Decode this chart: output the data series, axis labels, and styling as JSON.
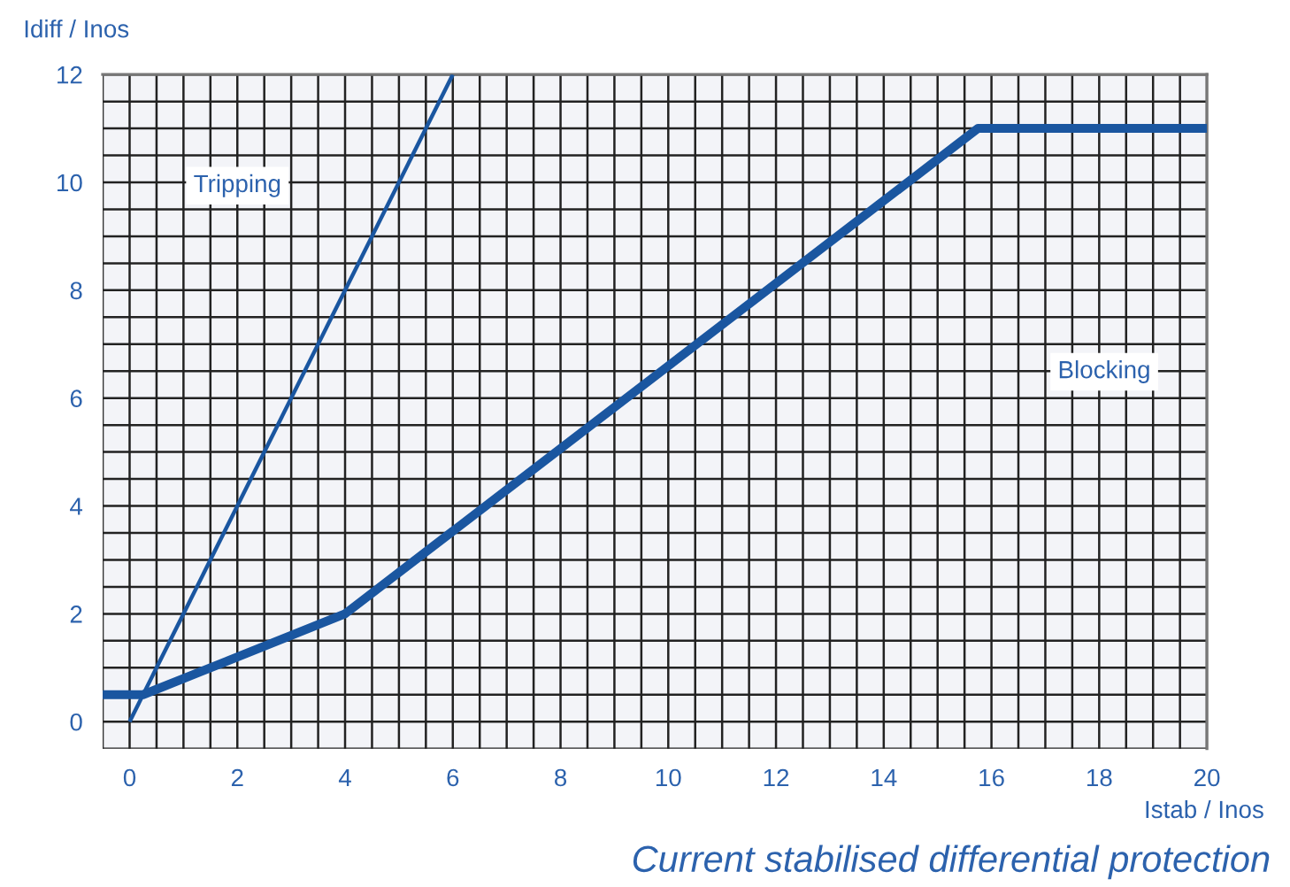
{
  "chart_data": {
    "type": "line",
    "title": "Current stabilised differential protection",
    "xlabel": "Istab / Inos",
    "ylabel": "Idiff / Inos",
    "xlim": [
      -0.5,
      20
    ],
    "ylim": [
      -0.5,
      12
    ],
    "xticks": [
      {
        "value": -0.5,
        "label": null
      },
      0,
      {
        "value": 0.5,
        "label": null
      },
      {
        "value": 1,
        "label": null
      },
      {
        "value": 1.5,
        "label": null
      },
      2,
      {
        "value": 2.5,
        "label": null
      },
      {
        "value": 3,
        "label": null
      },
      {
        "value": 3.5,
        "label": null
      },
      4,
      {
        "value": 4.5,
        "label": null
      },
      {
        "value": 5,
        "label": null
      },
      {
        "value": 5.5,
        "label": null
      },
      6,
      {
        "value": 6.5,
        "label": null
      },
      {
        "value": 7,
        "label": null
      },
      {
        "value": 7.5,
        "label": null
      },
      8,
      {
        "value": 8.5,
        "label": null
      },
      {
        "value": 9,
        "label": null
      },
      {
        "value": 9.5,
        "label": null
      },
      10,
      {
        "value": 10.5,
        "label": null
      },
      {
        "value": 11,
        "label": null
      },
      {
        "value": 11.5,
        "label": null
      },
      12,
      {
        "value": 12.5,
        "label": null
      },
      {
        "value": 13,
        "label": null
      },
      {
        "value": 13.5,
        "label": null
      },
      14,
      {
        "value": 14.5,
        "label": null
      },
      {
        "value": 15,
        "label": null
      },
      {
        "value": 15.5,
        "label": null
      },
      16,
      {
        "value": 16.5,
        "label": null
      },
      {
        "value": 17,
        "label": null
      },
      {
        "value": 17.5,
        "label": null
      },
      18,
      {
        "value": 18.5,
        "label": null
      },
      {
        "value": 19,
        "label": null
      },
      {
        "value": 19.5,
        "label": null
      },
      20
    ],
    "yticks": [
      {
        "value": -0.5,
        "label": null
      },
      0,
      {
        "value": 0.5,
        "label": null
      },
      {
        "value": 1,
        "label": null
      },
      {
        "value": 1.5,
        "label": null
      },
      2,
      {
        "value": 2.5,
        "label": null
      },
      {
        "value": 3,
        "label": null
      },
      {
        "value": 3.5,
        "label": null
      },
      4,
      {
        "value": 4.5,
        "label": null
      },
      {
        "value": 5,
        "label": null
      },
      {
        "value": 5.5,
        "label": null
      },
      6,
      {
        "value": 6.5,
        "label": null
      },
      {
        "value": 7,
        "label": null
      },
      {
        "value": 7.5,
        "label": null
      },
      8,
      {
        "value": 8.5,
        "label": null
      },
      {
        "value": 9,
        "label": null
      },
      {
        "value": 9.5,
        "label": null
      },
      10,
      {
        "value": 10.5,
        "label": null
      },
      {
        "value": 11,
        "label": null
      },
      {
        "value": 11.5,
        "label": null
      },
      12
    ],
    "grid": true,
    "marker": "none",
    "line_style": "solid",
    "series": [
      {
        "color": "#1a56a0",
        "x": [
          0,
          6
        ],
        "values": [
          0,
          12
        ]
      },
      {
        "color": "#1a56a0",
        "x": [
          -0.5,
          0.25,
          4,
          15.75,
          20
        ],
        "values": [
          0.5,
          0.5,
          2,
          11,
          11
        ]
      }
    ],
    "annotations": [
      "Tripping",
      "Blocking"
    ]
  }
}
